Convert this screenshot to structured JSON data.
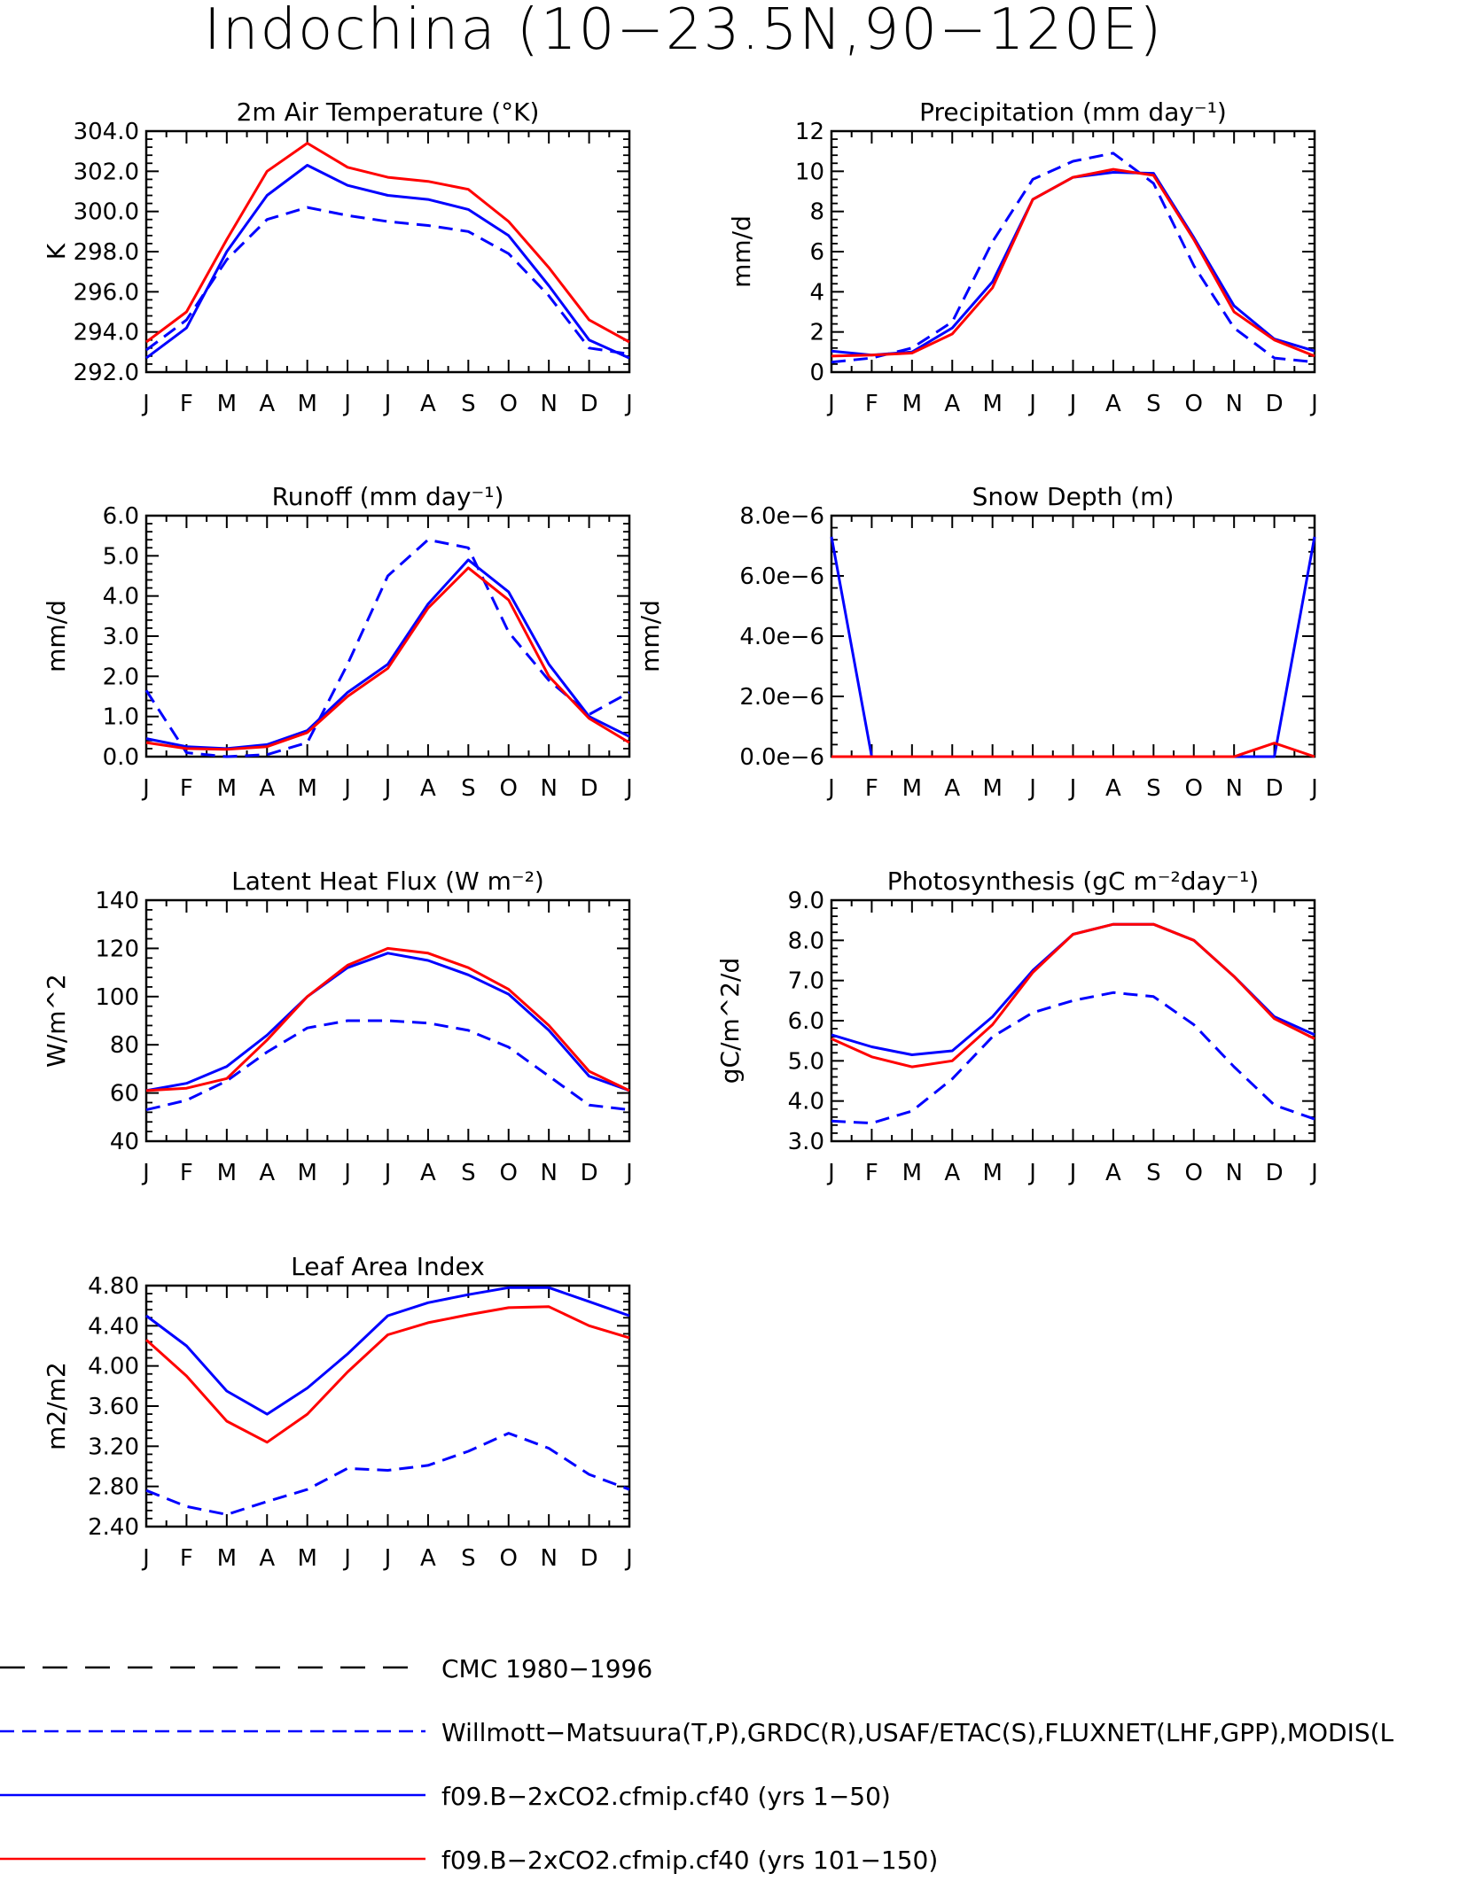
{
  "page_title": "Indochina (10−23.5N,90−120E)",
  "colors": {
    "red": "#ff0000",
    "blue": "#0000ff",
    "black": "#000000"
  },
  "chart_data": [
    {
      "id": "tas",
      "type": "line",
      "title": "2m Air Temperature (°K)",
      "ylabel": "K",
      "ylim": [
        292,
        304
      ],
      "yticks": [
        "292.0",
        "294.0",
        "296.0",
        "298.0",
        "300.0",
        "302.0",
        "304.0"
      ],
      "categories": [
        "J",
        "F",
        "M",
        "A",
        "M",
        "J",
        "J",
        "A",
        "S",
        "O",
        "N",
        "D",
        "J"
      ],
      "series": [
        {
          "name": "f09.B−2xCO2.cfmip.cf40 (yrs 101−150)",
          "style": "red-solid",
          "values": [
            293.5,
            295.0,
            298.6,
            302.0,
            303.4,
            302.2,
            301.7,
            301.5,
            301.1,
            299.5,
            297.2,
            294.6,
            293.5
          ]
        },
        {
          "name": "f09.B−2xCO2.cfmip.cf40 (yrs 1−50)",
          "style": "blue-solid",
          "values": [
            292.7,
            294.2,
            298.0,
            300.8,
            302.3,
            301.3,
            300.8,
            300.6,
            300.1,
            298.8,
            296.3,
            293.6,
            292.7
          ]
        },
        {
          "name": "Willmott−Matsuura(T,P),GRDC(R),USAF/ETAC(S),FLUXNET(LHF,GPP),MODIS(L",
          "style": "blue-dash",
          "values": [
            293.1,
            294.6,
            297.6,
            299.6,
            300.2,
            299.8,
            299.5,
            299.3,
            299.0,
            297.9,
            295.8,
            293.2,
            292.9
          ]
        }
      ]
    },
    {
      "id": "pr",
      "type": "line",
      "title": "Precipitation (mm day⁻¹)",
      "ylabel": "mm/d",
      "ylim": [
        0,
        12
      ],
      "yticks": [
        "0",
        "2",
        "4",
        "6",
        "8",
        "10",
        "12"
      ],
      "categories": [
        "J",
        "F",
        "M",
        "A",
        "M",
        "J",
        "J",
        "A",
        "S",
        "O",
        "N",
        "D",
        "J"
      ],
      "series": [
        {
          "name": "f09.B−2xCO2.cfmip.cf40 (yrs 101−150)",
          "style": "red-solid",
          "values": [
            0.8,
            0.85,
            0.95,
            1.9,
            4.2,
            8.6,
            9.7,
            10.1,
            9.8,
            6.6,
            3.0,
            1.6,
            0.8
          ]
        },
        {
          "name": "f09.B−2xCO2.cfmip.cf40 (yrs 1−50)",
          "style": "blue-solid",
          "values": [
            1.05,
            0.85,
            1.0,
            2.2,
            4.5,
            8.6,
            9.7,
            9.95,
            9.9,
            6.7,
            3.3,
            1.65,
            1.05
          ]
        },
        {
          "name": "Willmott−Matsuura(T,P),GRDC(R),USAF/ETAC(S),FLUXNET(LHF,GPP),MODIS(L",
          "style": "blue-dash",
          "values": [
            0.5,
            0.7,
            1.2,
            2.5,
            6.5,
            9.6,
            10.5,
            10.9,
            9.4,
            5.3,
            2.2,
            0.7,
            0.5
          ]
        }
      ]
    },
    {
      "id": "runoff",
      "type": "line",
      "title": "Runoff (mm day⁻¹)",
      "ylabel": "mm/d",
      "ylim": [
        0,
        6
      ],
      "yticks": [
        "0.0",
        "1.0",
        "2.0",
        "3.0",
        "4.0",
        "5.0",
        "6.0"
      ],
      "categories": [
        "J",
        "F",
        "M",
        "A",
        "M",
        "J",
        "J",
        "A",
        "S",
        "O",
        "N",
        "D",
        "J"
      ],
      "series": [
        {
          "name": "f09.B−2xCO2.cfmip.cf40 (yrs 101−150)",
          "style": "red-solid",
          "values": [
            0.35,
            0.2,
            0.18,
            0.25,
            0.6,
            1.5,
            2.2,
            3.7,
            4.7,
            3.9,
            2.0,
            0.95,
            0.35
          ]
        },
        {
          "name": "f09.B−2xCO2.cfmip.cf40 (yrs 1−50)",
          "style": "blue-solid",
          "values": [
            0.45,
            0.25,
            0.2,
            0.3,
            0.65,
            1.6,
            2.3,
            3.8,
            4.9,
            4.1,
            2.3,
            1.0,
            0.5
          ]
        },
        {
          "name": "Willmott−Matsuura(T,P),GRDC(R),USAF/ETAC(S),FLUXNET(LHF,GPP),MODIS(L",
          "style": "blue-dash",
          "values": [
            1.65,
            0.1,
            0.0,
            0.05,
            0.35,
            2.3,
            4.5,
            5.4,
            5.2,
            3.1,
            1.9,
            1.05,
            1.6
          ]
        }
      ]
    },
    {
      "id": "snow",
      "type": "line",
      "title": "Snow Depth (m)",
      "ylabel": "mm/d",
      "ylim": [
        0,
        8
      ],
      "yticks": [
        "0.0e−6",
        "2.0e−6",
        "4.0e−6",
        "6.0e−6",
        "8.0e−6"
      ],
      "categories": [
        "J",
        "F",
        "M",
        "A",
        "M",
        "J",
        "J",
        "A",
        "S",
        "O",
        "N",
        "D",
        "J"
      ],
      "series": [
        {
          "name": "f09.B−2xCO2.cfmip.cf40 (yrs 101−150)",
          "style": "red-solid",
          "values": [
            0,
            0,
            0,
            0,
            0,
            0,
            0,
            0,
            0,
            0,
            0,
            0.45,
            0
          ]
        },
        {
          "name": "f09.B−2xCO2.cfmip.cf40 (yrs 1−50)",
          "style": "blue-solid",
          "values": [
            7.3,
            0,
            0,
            0,
            0,
            0,
            0,
            0,
            0,
            0,
            0,
            0,
            7.3
          ]
        }
      ]
    },
    {
      "id": "lhf",
      "type": "line",
      "title": "Latent Heat Flux (W m⁻²)",
      "ylabel": "W/m^2",
      "ylim": [
        40,
        140
      ],
      "yticks": [
        "40",
        "60",
        "80",
        "100",
        "120",
        "140"
      ],
      "categories": [
        "J",
        "F",
        "M",
        "A",
        "M",
        "J",
        "J",
        "A",
        "S",
        "O",
        "N",
        "D",
        "J"
      ],
      "series": [
        {
          "name": "f09.B−2xCO2.cfmip.cf40 (yrs 101−150)",
          "style": "red-solid",
          "values": [
            61,
            62,
            66,
            82,
            100,
            113,
            120,
            118,
            112,
            103,
            88,
            69,
            61
          ]
        },
        {
          "name": "f09.B−2xCO2.cfmip.cf40 (yrs 1−50)",
          "style": "blue-solid",
          "values": [
            61,
            64,
            71,
            84,
            100,
            112,
            118,
            115,
            109,
            101,
            86,
            67,
            61
          ]
        },
        {
          "name": "Willmott−Matsuura(T,P),GRDC(R),USAF/ETAC(S),FLUXNET(LHF,GPP),MODIS(L",
          "style": "blue-dash",
          "values": [
            53,
            57,
            65,
            77,
            87,
            90,
            90,
            89,
            86,
            79,
            67,
            55,
            53
          ]
        }
      ]
    },
    {
      "id": "gpp",
      "type": "line",
      "title": "Photosynthesis (gC m⁻²day⁻¹)",
      "ylabel": "gC/m^2/d",
      "ylim": [
        3,
        9
      ],
      "yticks": [
        "3.0",
        "4.0",
        "5.0",
        "6.0",
        "7.0",
        "8.0",
        "9.0"
      ],
      "categories": [
        "J",
        "F",
        "M",
        "A",
        "M",
        "J",
        "J",
        "A",
        "S",
        "O",
        "N",
        "D",
        "J"
      ],
      "series": [
        {
          "name": "f09.B−2xCO2.cfmip.cf40 (yrs 101−150)",
          "style": "red-solid",
          "values": [
            5.55,
            5.1,
            4.85,
            5.0,
            5.9,
            7.2,
            8.15,
            8.4,
            8.4,
            8.0,
            7.1,
            6.05,
            5.55
          ]
        },
        {
          "name": "f09.B−2xCO2.cfmip.cf40 (yrs 1−50)",
          "style": "blue-solid",
          "values": [
            5.65,
            5.35,
            5.15,
            5.25,
            6.1,
            7.25,
            8.15,
            8.4,
            8.4,
            8.0,
            7.1,
            6.1,
            5.65
          ]
        },
        {
          "name": "Willmott−Matsuura(T,P),GRDC(R),USAF/ETAC(S),FLUXNET(LHF,GPP),MODIS(L",
          "style": "blue-dash",
          "values": [
            3.5,
            3.45,
            3.75,
            4.55,
            5.6,
            6.2,
            6.5,
            6.7,
            6.6,
            5.9,
            4.85,
            3.9,
            3.55
          ]
        }
      ]
    },
    {
      "id": "lai",
      "type": "line",
      "title": "Leaf Area Index",
      "ylabel": "m2/m2",
      "ylim": [
        2.4,
        4.8
      ],
      "yticks": [
        "2.40",
        "2.80",
        "3.20",
        "3.60",
        "4.00",
        "4.40",
        "4.80"
      ],
      "categories": [
        "J",
        "F",
        "M",
        "A",
        "M",
        "J",
        "J",
        "A",
        "S",
        "O",
        "N",
        "D",
        "J"
      ],
      "series": [
        {
          "name": "f09.B−2xCO2.cfmip.cf40 (yrs 101−150)",
          "style": "red-solid",
          "values": [
            4.26,
            3.9,
            3.45,
            3.24,
            3.52,
            3.94,
            4.31,
            4.43,
            4.51,
            4.58,
            4.59,
            4.4,
            4.28
          ]
        },
        {
          "name": "f09.B−2xCO2.cfmip.cf40 (yrs 1−50)",
          "style": "blue-solid",
          "values": [
            4.5,
            4.2,
            3.75,
            3.52,
            3.78,
            4.12,
            4.5,
            4.63,
            4.71,
            4.78,
            4.78,
            4.64,
            4.5
          ]
        },
        {
          "name": "Willmott−Matsuura(T,P),GRDC(R),USAF/ETAC(S),FLUXNET(LHF,GPP),MODIS(L",
          "style": "blue-dash",
          "values": [
            2.76,
            2.6,
            2.52,
            2.65,
            2.77,
            2.98,
            2.96,
            3.01,
            3.15,
            3.33,
            3.18,
            2.92,
            2.77
          ]
        }
      ]
    }
  ],
  "legend": [
    {
      "label": "CMC 1980−1996",
      "style": "black-dash"
    },
    {
      "label": "Willmott−Matsuura(T,P),GRDC(R),USAF/ETAC(S),FLUXNET(LHF,GPP),MODIS(L",
      "style": "blue-dash"
    },
    {
      "label": "f09.B−2xCO2.cfmip.cf40 (yrs 1−50)",
      "style": "blue-solid"
    },
    {
      "label": "f09.B−2xCO2.cfmip.cf40 (yrs 101−150)",
      "style": "red-solid"
    }
  ]
}
